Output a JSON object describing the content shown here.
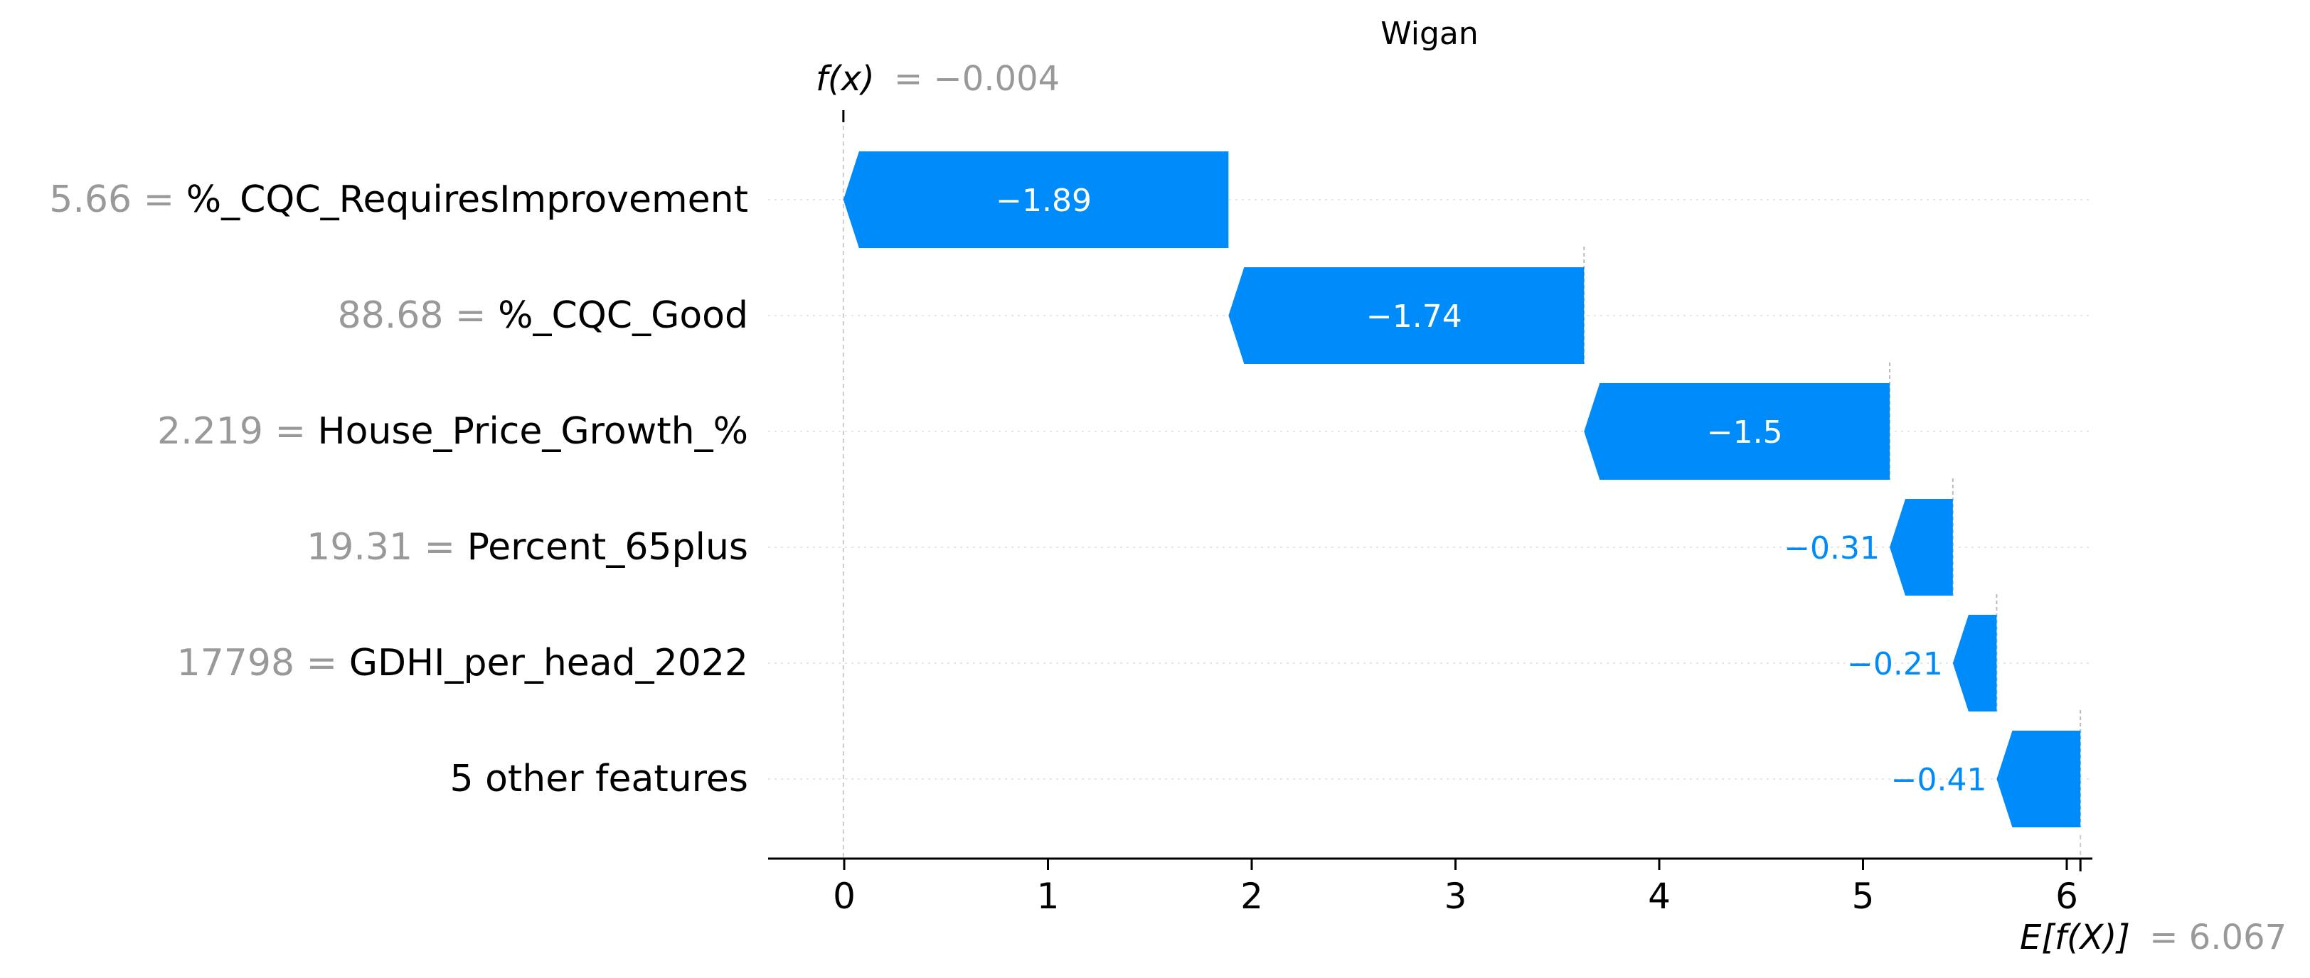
{
  "chart_data": {
    "type": "waterfall",
    "title": "Wigan",
    "fx_label": "f(x)",
    "fx_value": "= −0.004",
    "base_label": "E[f(X)]",
    "base_value": "= 6.067",
    "base_numeric": 6.067,
    "final_numeric": -0.004,
    "features": [
      {
        "value": "5.66 =",
        "name": "%_CQC_RequiresImprovement",
        "contribution": -1.89,
        "label": "−1.89",
        "start": 1.886,
        "end": -0.004
      },
      {
        "value": "88.68 =",
        "name": "%_CQC_Good",
        "contribution": -1.74,
        "label": "−1.74",
        "start": 3.631,
        "end": 1.886
      },
      {
        "value": "2.219 =",
        "name": "House_Price_Growth_%",
        "contribution": -1.5,
        "label": "−1.5",
        "start": 5.131,
        "end": 3.631
      },
      {
        "value": "19.31 =",
        "name": "Percent_65plus",
        "contribution": -0.31,
        "label": "−0.31",
        "start": 5.441,
        "end": 5.131
      },
      {
        "value": "17798 =",
        "name": "GDHI_per_head_2022",
        "contribution": -0.21,
        "label": "−0.21",
        "start": 5.656,
        "end": 5.441
      },
      {
        "value": "",
        "name": "5 other features",
        "contribution": -0.41,
        "label": "−0.41",
        "start": 6.067,
        "end": 5.656
      }
    ],
    "x_ticks": [
      "0",
      "1",
      "2",
      "3",
      "4",
      "5",
      "6"
    ],
    "x_tick_values": [
      0,
      1,
      2,
      3,
      4,
      5,
      6
    ],
    "xlim": [
      -0.37,
      6.1
    ],
    "colors": {
      "negative": "#008bfb",
      "value_text": "#999999",
      "label_text": "#000000"
    }
  }
}
